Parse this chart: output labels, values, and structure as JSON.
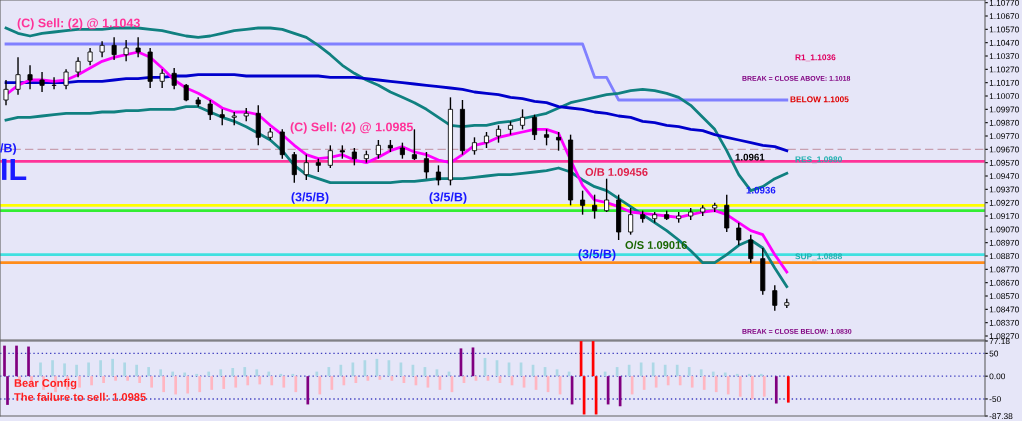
{
  "chart_data": [
    {
      "type": "candlestick",
      "categories": [
        null,
        null,
        null,
        null,
        null,
        null,
        null,
        null,
        null,
        null,
        null,
        null,
        null,
        null,
        null,
        null,
        null,
        null,
        null,
        null,
        null,
        null,
        null,
        null,
        null,
        null,
        null,
        null,
        null,
        null,
        null,
        null,
        null,
        null,
        null,
        null,
        null,
        null,
        null,
        null,
        null,
        null,
        null,
        null,
        null,
        null,
        null,
        null,
        null,
        null,
        null,
        null,
        null,
        null,
        null,
        null,
        null,
        null,
        null,
        null,
        null,
        null,
        null,
        null,
        null,
        null,
        null,
        null,
        null,
        null,
        null,
        null,
        null,
        null,
        null,
        null,
        null,
        null,
        null,
        null,
        null,
        null
      ],
      "ohlc": [
        [
          1.1004,
          1.1019,
          1.1,
          1.1012
        ],
        [
          1.1012,
          1.1036,
          1.1008,
          1.1023
        ],
        [
          1.1023,
          1.103,
          1.1012,
          1.1019
        ],
        [
          1.1019,
          1.1025,
          1.101,
          1.1015
        ],
        [
          1.1015,
          1.1021,
          1.1012,
          1.1015
        ],
        [
          1.1015,
          1.1027,
          1.1012,
          1.1025
        ],
        [
          1.1025,
          1.1036,
          1.1021,
          1.1033
        ],
        [
          1.1033,
          1.1043,
          1.103,
          1.104
        ],
        [
          1.104,
          1.1048,
          1.1036,
          1.1045
        ],
        [
          1.1045,
          1.1051,
          1.1034,
          1.1038
        ],
        [
          1.1038,
          1.1049,
          1.1033,
          1.1043
        ],
        [
          1.1043,
          1.1051,
          1.1036,
          1.104
        ],
        [
          1.104,
          1.1043,
          1.1013,
          1.1018
        ],
        [
          1.1018,
          1.1027,
          1.1013,
          1.1024
        ],
        [
          1.1024,
          1.1028,
          1.1012,
          1.1015
        ],
        [
          1.1015,
          1.1016,
          1.1003,
          1.1004
        ],
        [
          1.1004,
          1.1006,
          1.0999,
          1.1001
        ],
        [
          1.1001,
          1.1004,
          1.0989,
          1.0993
        ],
        [
          1.0993,
          1.0997,
          1.0985,
          1.0991
        ],
        [
          1.0991,
          1.0995,
          1.0985,
          1.0992
        ],
        [
          1.0992,
          1.0998,
          1.0988,
          1.0994
        ],
        [
          1.0994,
          1.1,
          1.097,
          1.0976
        ],
        [
          1.0976,
          1.0983,
          1.0974,
          1.098
        ],
        [
          1.098,
          1.0982,
          1.096,
          1.0963
        ],
        [
          1.0963,
          1.0965,
          1.0942,
          1.0948
        ],
        [
          1.0948,
          1.0963,
          1.0944,
          1.0957
        ],
        [
          1.0957,
          1.096,
          1.095,
          1.0955
        ],
        [
          1.0955,
          1.097,
          1.0953,
          1.0966
        ],
        [
          1.0966,
          1.097,
          1.096,
          1.0965
        ],
        [
          1.0965,
          1.0968,
          1.0955,
          1.096
        ],
        [
          1.096,
          1.0966,
          1.0957,
          1.0963
        ],
        [
          1.0963,
          1.0974,
          1.096,
          1.097
        ],
        [
          1.097,
          1.0974,
          1.0965,
          1.0968
        ],
        [
          1.0968,
          1.0972,
          1.096,
          1.0963
        ],
        [
          1.0963,
          1.0982,
          1.0959,
          1.096
        ],
        [
          1.096,
          1.0965,
          1.0945,
          1.095
        ],
        [
          1.095,
          1.0955,
          1.094,
          1.0944
        ],
        [
          1.0944,
          1.1006,
          1.094,
          1.0997
        ],
        [
          1.0997,
          1.1004,
          1.0963,
          1.0966
        ],
        [
          1.0966,
          1.0976,
          1.0963,
          1.0972
        ],
        [
          1.0972,
          1.098,
          1.0968,
          1.0977
        ],
        [
          1.0977,
          1.0985,
          1.0972,
          1.0982
        ],
        [
          1.0982,
          1.0988,
          1.0978,
          1.0985
        ],
        [
          1.0985,
          1.0997,
          1.0982,
          1.0991
        ],
        [
          1.0991,
          1.0993,
          1.0974,
          1.0978
        ],
        [
          1.0978,
          1.0982,
          1.097,
          1.0976
        ],
        [
          1.0976,
          1.098,
          1.0966,
          1.0974
        ],
        [
          1.0974,
          1.0978,
          1.0925,
          1.0929
        ],
        [
          1.0929,
          1.0936,
          1.0918,
          1.0925
        ],
        [
          1.0925,
          1.0933,
          1.0915,
          1.0921
        ],
        [
          1.0921,
          1.0945,
          1.092,
          1.0929
        ],
        [
          1.0929,
          1.0933,
          1.0899,
          1.0905
        ],
        [
          1.0905,
          1.0923,
          1.0903,
          1.0918
        ],
        [
          1.0918,
          1.0921,
          1.0912,
          1.0915
        ],
        [
          1.0915,
          1.092,
          1.0912,
          1.0918
        ],
        [
          1.0918,
          1.0921,
          1.0914,
          1.0915
        ],
        [
          1.0915,
          1.092,
          1.0912,
          1.0917
        ],
        [
          1.0917,
          1.0923,
          1.0914,
          1.092
        ],
        [
          1.092,
          1.0925,
          1.0917,
          1.0923
        ],
        [
          1.0923,
          1.0927,
          1.092,
          1.0925
        ],
        [
          1.0925,
          1.0933,
          1.0905,
          1.0908
        ],
        [
          1.0908,
          1.0912,
          1.0895,
          1.0899
        ],
        [
          1.0899,
          1.0903,
          1.0882,
          1.0885
        ],
        [
          1.0885,
          1.0893,
          1.0858,
          1.0861
        ],
        [
          1.0861,
          1.0865,
          1.0846,
          1.085
        ],
        [
          1.085,
          1.0855,
          1.0848,
          1.0852
        ],
        null,
        null,
        null,
        null,
        null,
        null,
        null,
        null,
        null,
        null,
        null,
        null,
        null,
        null,
        null,
        null
      ],
      "series": [
        {
          "type": "line",
          "color": "#8080ff",
          "values": [
            1.1046,
            1.1046,
            1.1046,
            1.1046,
            1.1046,
            1.1046,
            1.1046,
            1.1046,
            1.1046,
            1.1046,
            1.1046,
            1.1046,
            1.1046,
            1.1046,
            1.1046,
            1.1046,
            1.1046,
            1.1046,
            1.1046,
            1.1046,
            1.1046,
            1.1046,
            1.1046,
            1.1046,
            1.1046,
            1.1046,
            1.1046,
            1.1046,
            1.1046,
            1.1046,
            1.1046,
            1.1046,
            1.1046,
            1.1046,
            1.1046,
            1.1046,
            1.1046,
            1.1046,
            1.1046,
            1.1046,
            1.1046,
            1.1046,
            1.1046,
            1.1046,
            1.1046,
            1.1046,
            1.1046,
            1.1046,
            1.1046,
            1.1021,
            1.1021,
            1.1004,
            1.1004,
            1.1004,
            1.1004,
            1.1004,
            1.1004,
            1.1004,
            1.1004,
            1.1004,
            1.1004,
            1.1004,
            1.1004,
            1.1004,
            1.1004,
            1.1004,
            null,
            null,
            null,
            null,
            null,
            null,
            null,
            null,
            null,
            null,
            null,
            null,
            null,
            null,
            null,
            null
          ]
        },
        {
          "type": "line",
          "color": "#108080",
          "values": [
            1.1058,
            1.1054,
            1.1052,
            1.1054,
            1.1055,
            1.1056,
            1.1057,
            1.1057,
            1.1057,
            1.1058,
            1.1058,
            1.1058,
            1.1057,
            1.1056,
            1.1054,
            1.1052,
            1.1051,
            1.1052,
            1.1054,
            1.1056,
            1.1057,
            1.1058,
            1.1058,
            1.1057,
            1.1054,
            1.1051,
            1.1045,
            1.1038,
            1.103,
            1.1024,
            1.1019,
            1.1015,
            1.101,
            1.1006,
            1.1002,
            1.0997,
            1.0991,
            1.0985,
            1.0984,
            1.0985,
            1.0985,
            1.0987,
            1.0988,
            1.099,
            1.0992,
            1.0994,
            1.0998,
            1.1002,
            1.1004,
            1.1006,
            1.1008,
            1.1009,
            1.1011,
            1.1012,
            1.1011,
            1.1009,
            1.1006,
            1.1,
            1.0991,
            1.0982,
            1.0966,
            1.0948,
            1.0936,
            1.0939,
            1.0945,
            1.0949,
            null,
            null,
            null,
            null,
            null,
            null,
            null,
            null,
            null,
            null,
            null,
            null,
            null,
            null,
            null,
            null
          ]
        },
        {
          "type": "line",
          "color": "#108080",
          "values": [
            1.0989,
            1.0991,
            1.0991,
            1.0992,
            1.0993,
            1.0994,
            1.0994,
            1.0994,
            1.0995,
            1.0995,
            1.0996,
            1.0996,
            1.0997,
            1.0997,
            1.0997,
            1.0999,
            1.0999,
            1.0995,
            1.0991,
            1.0988,
            1.0984,
            1.0979,
            1.0974,
            1.0966,
            1.0955,
            1.0948,
            1.0945,
            1.0942,
            1.0942,
            1.0942,
            1.0942,
            1.0942,
            1.0942,
            1.0943,
            1.0943,
            1.0944,
            1.0945,
            1.0945,
            1.0945,
            1.0946,
            1.0947,
            1.0948,
            1.0948,
            1.0949,
            1.095,
            1.0951,
            1.0953,
            1.095,
            1.0944,
            1.0939,
            1.0936,
            1.093,
            1.0924,
            1.0918,
            1.0912,
            1.0906,
            1.0899,
            1.0891,
            1.0882,
            1.0882,
            1.0888,
            1.0895,
            1.0899,
            1.0893,
            1.0878,
            1.0864,
            null,
            null,
            null,
            null,
            null,
            null,
            null,
            null,
            null,
            null,
            null,
            null,
            null,
            null,
            null,
            null
          ]
        },
        {
          "type": "line",
          "color": "#0000cc",
          "values": [
            1.1017,
            1.1017,
            1.1017,
            1.1017,
            1.1017,
            1.1017,
            1.1018,
            1.1018,
            1.1018,
            1.1019,
            1.102,
            1.102,
            1.1021,
            1.1021,
            1.1022,
            1.1022,
            1.1023,
            1.1023,
            1.1023,
            1.1023,
            1.1022,
            1.1022,
            1.1022,
            1.1022,
            1.1022,
            1.1022,
            1.1022,
            1.1021,
            1.1021,
            1.1021,
            1.102,
            1.1019,
            1.1018,
            1.1017,
            1.1016,
            1.1015,
            1.1014,
            1.1013,
            1.1012,
            1.101,
            1.1009,
            1.1008,
            1.1006,
            1.1005,
            1.1003,
            1.1002,
            1.0999,
            1.0998,
            1.0997,
            1.0995,
            1.0994,
            1.0992,
            1.0991,
            1.0988,
            1.0987,
            1.0985,
            1.0984,
            1.0982,
            1.0981,
            1.0978,
            1.0976,
            1.0974,
            1.0972,
            1.097,
            1.0969,
            1.0966,
            null,
            null,
            null,
            null,
            null,
            null,
            null,
            null,
            null,
            null,
            null,
            null,
            null,
            null,
            null,
            null
          ]
        },
        {
          "type": "line",
          "color": "#ff00ff",
          "values": [
            1.1008,
            1.1015,
            1.1019,
            1.1019,
            1.1018,
            1.1019,
            1.1023,
            1.1028,
            1.1033,
            1.1036,
            1.1038,
            1.104,
            1.1036,
            1.1028,
            1.1019,
            1.1013,
            1.1009,
            1.1004,
            1.0998,
            1.0995,
            1.0995,
            1.0993,
            1.0985,
            1.0978,
            1.097,
            1.0963,
            1.096,
            1.0961,
            1.0963,
            1.0959,
            1.0957,
            1.0961,
            1.0966,
            1.0969,
            1.0965,
            1.0963,
            1.0959,
            1.0957,
            1.0963,
            1.097,
            1.0972,
            1.0976,
            1.0978,
            1.098,
            1.0982,
            1.0982,
            1.0979,
            1.0959,
            1.094,
            1.0929,
            1.0927,
            1.0924,
            1.092,
            1.0919,
            1.0918,
            1.0917,
            1.0916,
            1.0918,
            1.092,
            1.0921,
            1.0918,
            1.0912,
            1.0906,
            1.0903,
            1.0888,
            1.0875,
            null,
            null,
            null,
            null,
            null,
            null,
            null,
            null,
            null,
            null,
            null,
            null,
            null,
            null,
            null,
            null
          ]
        }
      ],
      "ylim": [
        1.0824,
        1.1079
      ],
      "yticks": [
        {
          "value": 1.0827,
          "label": "1.08270"
        },
        {
          "value": 1.0837,
          "label": "1.08370"
        },
        {
          "value": 1.0847,
          "label": "1.08470"
        },
        {
          "value": 1.0857,
          "label": "1.08570"
        },
        {
          "value": 1.0867,
          "label": "1.08670"
        },
        {
          "value": 1.0877,
          "label": "1.08770"
        },
        {
          "value": 1.0887,
          "label": "1.08870"
        },
        {
          "value": 1.0897,
          "label": "1.08970"
        },
        {
          "value": 1.0907,
          "label": "1.09070"
        },
        {
          "value": 1.0917,
          "label": "1.09170"
        },
        {
          "value": 1.0927,
          "label": "1.09270"
        },
        {
          "value": 1.0937,
          "label": "1.09370"
        },
        {
          "value": 1.0947,
          "label": "1.09470"
        },
        {
          "value": 1.0957,
          "label": "1.09570"
        },
        {
          "value": 1.0967,
          "label": "1.09670"
        },
        {
          "value": 1.0977,
          "label": "1.09770"
        },
        {
          "value": 1.0987,
          "label": "1.09870"
        },
        {
          "value": 1.0997,
          "label": "1.09970"
        },
        {
          "value": 1.1007,
          "label": "1.10070"
        },
        {
          "value": 1.1017,
          "label": "1.10170"
        },
        {
          "value": 1.1027,
          "label": "1.10270"
        },
        {
          "value": 1.1037,
          "label": "1.10370"
        },
        {
          "value": 1.1047,
          "label": "1.10470"
        },
        {
          "value": 1.1057,
          "label": "1.10570"
        },
        {
          "value": 1.1067,
          "label": "1.10670"
        },
        {
          "value": 1.1077,
          "label": "1.10770"
        }
      ],
      "tick_labels": "y",
      "grid": false,
      "ref_lines": [
        {
          "axis": "y",
          "value": 1.0925,
          "color": "#ffff00"
        },
        {
          "axis": "y",
          "value": 1.0921,
          "color": "#33ee33"
        },
        {
          "axis": "y",
          "value": 1.0958,
          "color": "#ff3399"
        },
        {
          "axis": "y",
          "value": 1.0967,
          "color": "#c8a0b0",
          "line_style": "dashed"
        },
        {
          "axis": "y",
          "value": 1.0882,
          "color": "#ff8c1a"
        },
        {
          "axis": "y",
          "value": 1.0888,
          "color": "#40e0e0"
        }
      ],
      "annotations": [
        "(C) Sell: (2) @ 1.1043",
        "(C) Sell: (2) @ 1.0985",
        "(3/5/B)",
        "(3/5/B)",
        "(3/5/B)",
        "/B)",
        "IL",
        "O/B 1.09456",
        "O/S 1.09016",
        "1.0961",
        "1.0936",
        "R1_1.1036",
        "BREAK = CLOSE ABOVE: 1.1018",
        "BELOW 1.1005",
        "RES_1.0980",
        "SUP_1.0888",
        "BREAK = CLOSE BELOW: 1.0830"
      ]
    },
    {
      "type": "bar",
      "categories": [
        null,
        null,
        null,
        null,
        null,
        null,
        null,
        null,
        null,
        null,
        null,
        null,
        null,
        null,
        null,
        null,
        null,
        null,
        null,
        null,
        null,
        null,
        null,
        null,
        null,
        null,
        null,
        null,
        null,
        null,
        null,
        null,
        null,
        null,
        null,
        null,
        null,
        null,
        null,
        null,
        null,
        null,
        null,
        null,
        null,
        null,
        null,
        null,
        null,
        null,
        null,
        null,
        null,
        null,
        null,
        null,
        null,
        null,
        null,
        null,
        null,
        null,
        null,
        null,
        null,
        null,
        null,
        null,
        null,
        null,
        null,
        null,
        null,
        null,
        null,
        null,
        null,
        null,
        null,
        null,
        null,
        null
      ],
      "series": [
        {
          "values": [
            67,
            67,
            65,
            30,
            35,
            28,
            25,
            30,
            35,
            38,
            30,
            25,
            20,
            15,
            10,
            8,
            5,
            10,
            15,
            18,
            20,
            15,
            10,
            5,
            5,
            null,
            10,
            20,
            25,
            30,
            35,
            38,
            35,
            30,
            25,
            20,
            15,
            10,
            61,
            63,
            40,
            35,
            30,
            30,
            25,
            20,
            15,
            10,
            77,
            77,
            10,
            20,
            25,
            30,
            30,
            25,
            25,
            20,
            15,
            10,
            8,
            5,
            5,
            5,
            null,
            null,
            null,
            null,
            null,
            null,
            null,
            null,
            null,
            null,
            null,
            null,
            null,
            null,
            null,
            null,
            null,
            null
          ],
          "colors": [
            "#800080",
            "#800080",
            "#800080",
            "#add8e6",
            "#add8e6",
            "#add8e6",
            "#add8e6",
            "#add8e6",
            "#add8e6",
            "#add8e6",
            "#add8e6",
            "#add8e6",
            "#add8e6",
            "#add8e6",
            "#add8e6",
            "#add8e6",
            "#add8e6",
            "#add8e6",
            "#add8e6",
            "#add8e6",
            "#add8e6",
            "#add8e6",
            "#add8e6",
            "#add8e6",
            "#add8e6",
            "#add8e6",
            "#add8e6",
            "#add8e6",
            "#add8e6",
            "#add8e6",
            "#add8e6",
            "#add8e6",
            "#add8e6",
            "#add8e6",
            "#add8e6",
            "#add8e6",
            "#add8e6",
            "#add8e6",
            "#800080",
            "#800080",
            "#add8e6",
            "#add8e6",
            "#add8e6",
            "#add8e6",
            "#add8e6",
            "#add8e6",
            "#add8e6",
            "#add8e6",
            "#ff0000",
            "#ff0000",
            "#add8e6",
            "#add8e6",
            "#add8e6",
            "#add8e6",
            "#add8e6",
            "#add8e6",
            "#add8e6",
            "#add8e6",
            "#add8e6",
            "#add8e6",
            "#add8e6",
            "#add8e6",
            "#add8e6",
            "#add8e6",
            "#add8e6",
            "#add8e6",
            null,
            null,
            null,
            null,
            null,
            null,
            null,
            null,
            null,
            null,
            null,
            null,
            null,
            null,
            null,
            null
          ]
        },
        {
          "values": [
            -63,
            -20,
            -25,
            -30,
            -35,
            -30,
            -25,
            -20,
            -15,
            -10,
            -10,
            -15,
            -25,
            -35,
            -40,
            -38,
            -35,
            -30,
            -28,
            -25,
            -20,
            -18,
            -20,
            -25,
            -35,
            -62,
            -40,
            -30,
            -20,
            -15,
            -10,
            -8,
            -10,
            -15,
            -20,
            -25,
            -30,
            -35,
            -15,
            -10,
            -10,
            -15,
            -20,
            -25,
            -30,
            -35,
            -40,
            -62,
            -84,
            -84,
            -62,
            -66,
            -40,
            -30,
            -25,
            -20,
            -20,
            -25,
            -30,
            -35,
            -40,
            -45,
            -50,
            -45,
            -60,
            -58,
            null,
            null,
            null,
            null,
            null,
            null,
            null,
            null,
            null,
            null,
            null,
            null,
            null,
            null,
            null,
            null
          ],
          "colors": [
            "#800080",
            "#ffb6c1",
            "#ffb6c1",
            "#ffb6c1",
            "#ffb6c1",
            "#ffb6c1",
            "#ffb6c1",
            "#ffb6c1",
            "#ffb6c1",
            "#ffb6c1",
            "#ffb6c1",
            "#ffb6c1",
            "#ffb6c1",
            "#ffb6c1",
            "#ffb6c1",
            "#ffb6c1",
            "#ffb6c1",
            "#ffb6c1",
            "#ffb6c1",
            "#ffb6c1",
            "#ffb6c1",
            "#ffb6c1",
            "#ffb6c1",
            "#ffb6c1",
            "#ffb6c1",
            "#800080",
            "#ffb6c1",
            "#ffb6c1",
            "#ffb6c1",
            "#ffb6c1",
            "#ffb6c1",
            "#ffb6c1",
            "#ffb6c1",
            "#ffb6c1",
            "#ffb6c1",
            "#ffb6c1",
            "#ffb6c1",
            "#ffb6c1",
            "#ffb6c1",
            "#ffb6c1",
            "#ffb6c1",
            "#ffb6c1",
            "#ffb6c1",
            "#ffb6c1",
            "#ffb6c1",
            "#ffb6c1",
            "#ffb6c1",
            "#800080",
            "#ff0000",
            "#ff0000",
            "#800080",
            "#800080",
            "#ffb6c1",
            "#ffb6c1",
            "#ffb6c1",
            "#ffb6c1",
            "#ffb6c1",
            "#ffb6c1",
            "#ffb6c1",
            "#ffb6c1",
            "#ffb6c1",
            "#ffb6c1",
            "#ffb6c1",
            "#ffb6c1",
            "#800080",
            "#ff0000",
            null,
            null,
            null,
            null,
            null,
            null,
            null,
            null,
            null,
            null,
            null,
            null,
            null,
            null,
            null,
            null
          ]
        }
      ],
      "ylim": [
        -87.38,
        77.18
      ],
      "yticks": [
        -87.38,
        -50,
        {
          "value": 0,
          "label": "0.00"
        },
        50,
        77.18
      ],
      "tick_labels": "y",
      "grid": false,
      "ref_lines": [
        {
          "axis": "y",
          "value": 50,
          "color": "#4040c0",
          "line_style": "dotted"
        },
        {
          "axis": "y",
          "value": 0,
          "color": "#4040c0",
          "line_style": "dotted"
        },
        {
          "axis": "y",
          "value": -50,
          "color": "#4040c0",
          "line_style": "dotted"
        }
      ],
      "annotations": [
        "Bear Config",
        "The failure to sell: 1.0985"
      ]
    }
  ]
}
